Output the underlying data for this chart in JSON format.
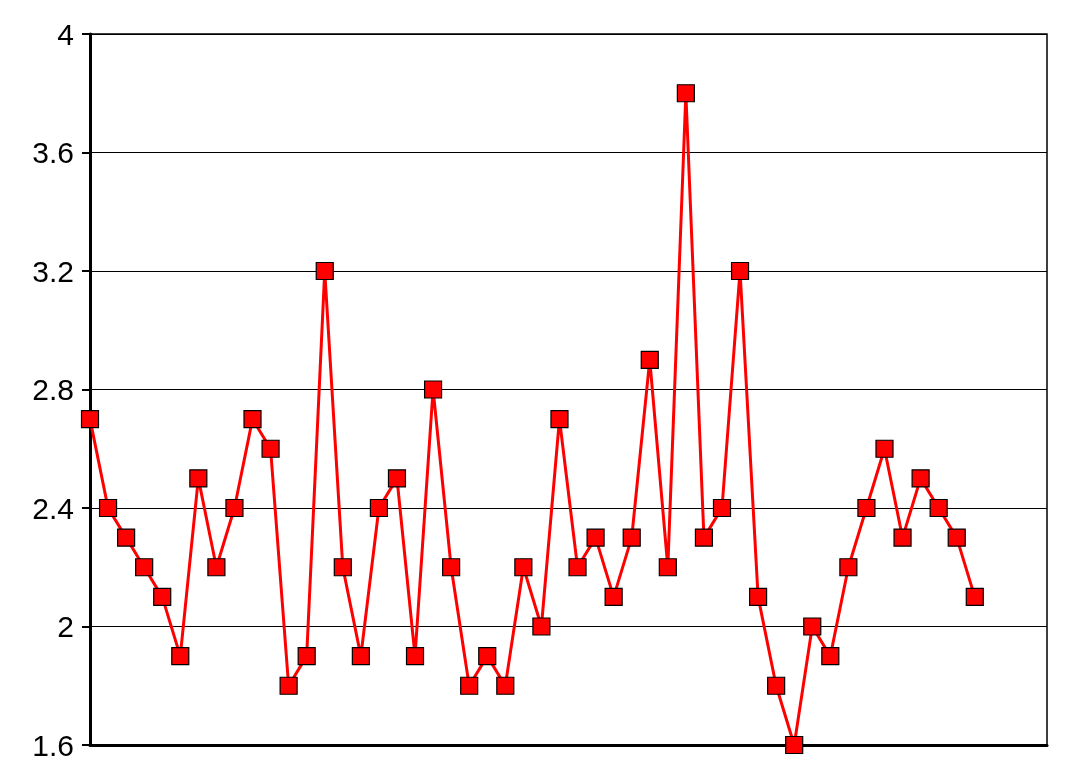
{
  "chart_data": {
    "type": "line",
    "categories": [
      null,
      null,
      null,
      null,
      null,
      null,
      null,
      null,
      null,
      null,
      null,
      null,
      null,
      null,
      null,
      null,
      null,
      null,
      null,
      null,
      null,
      null,
      null,
      null,
      null,
      null,
      null,
      null,
      null,
      null,
      null,
      null,
      null,
      null,
      null,
      null,
      null,
      null,
      null,
      null,
      null,
      null,
      null,
      null,
      null,
      null,
      null,
      null,
      null,
      null
    ],
    "series": [
      {
        "color": "#ff0000",
        "values": [
          2.7,
          2.4,
          2.3,
          2.2,
          2.1,
          1.9,
          2.5,
          2.2,
          2.4,
          2.7,
          2.6,
          1.8,
          1.9,
          3.2,
          2.2,
          1.9,
          2.4,
          2.5,
          1.9,
          2.8,
          2.2,
          1.8,
          1.9,
          1.8,
          2.2,
          2.0,
          2.7,
          2.2,
          2.3,
          2.1,
          2.3,
          2.9,
          2.2,
          3.8,
          2.3,
          2.4,
          3.2,
          2.1,
          1.8,
          1.6,
          2.0,
          1.9,
          2.2,
          2.4,
          2.6,
          2.3,
          2.5,
          2.4,
          2.3,
          2.1
        ]
      }
    ],
    "ylim": [
      1.6,
      4
    ],
    "yticks": [
      1.6,
      2,
      2.4,
      2.8,
      3.2,
      3.6,
      4
    ],
    "grid": "y",
    "marker": "square",
    "line_style": "solid"
  }
}
